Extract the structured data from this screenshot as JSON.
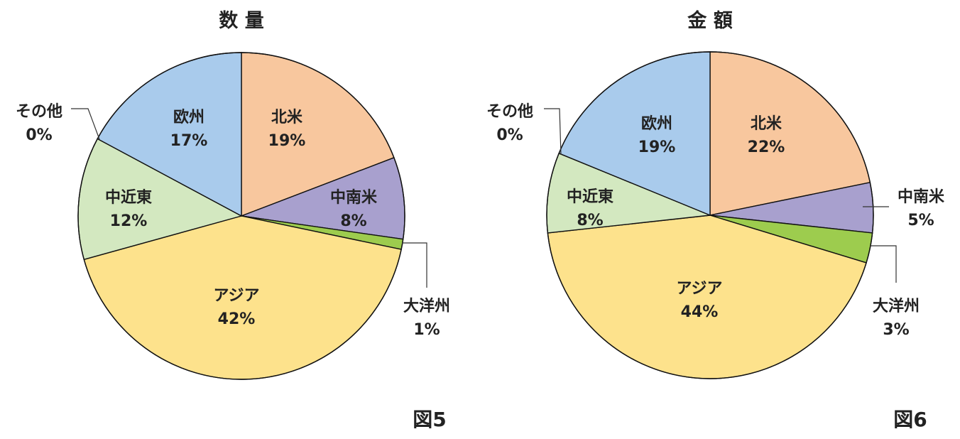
{
  "figures": [
    {
      "label": "図5"
    },
    {
      "label": "図6"
    }
  ],
  "chart_data": [
    {
      "type": "pie",
      "title": "数 量",
      "slices": [
        {
          "label": "北米",
          "value": 19,
          "value_text": "19%",
          "color": "#F8C79E"
        },
        {
          "label": "中南米",
          "value": 8,
          "value_text": "8%",
          "color": "#A8A0CE"
        },
        {
          "label": "大洋州",
          "value": 1,
          "value_text": "1%",
          "color": "#9DCC4E"
        },
        {
          "label": "アジア",
          "value": 42,
          "value_text": "42%",
          "color": "#FDE28C"
        },
        {
          "label": "中近東",
          "value": 12,
          "value_text": "12%",
          "color": "#D3E8C0"
        },
        {
          "label": "その他",
          "value": 0,
          "value_text": "0%",
          "color": "#FFFFFF"
        },
        {
          "label": "欧州",
          "value": 17,
          "value_text": "17%",
          "color": "#A9CBEC"
        }
      ]
    },
    {
      "type": "pie",
      "title": "金 額",
      "slices": [
        {
          "label": "北米",
          "value": 22,
          "value_text": "22%",
          "color": "#F8C79E"
        },
        {
          "label": "中南米",
          "value": 5,
          "value_text": "5%",
          "color": "#A8A0CE"
        },
        {
          "label": "大洋州",
          "value": 3,
          "value_text": "3%",
          "color": "#9DCC4E"
        },
        {
          "label": "アジア",
          "value": 44,
          "value_text": "44%",
          "color": "#FDE28C"
        },
        {
          "label": "中近東",
          "value": 8,
          "value_text": "8%",
          "color": "#D3E8C0"
        },
        {
          "label": "その他",
          "value": 0,
          "value_text": "0%",
          "color": "#FFFFFF"
        },
        {
          "label": "欧州",
          "value": 19,
          "value_text": "19%",
          "color": "#A9CBEC"
        }
      ]
    }
  ]
}
